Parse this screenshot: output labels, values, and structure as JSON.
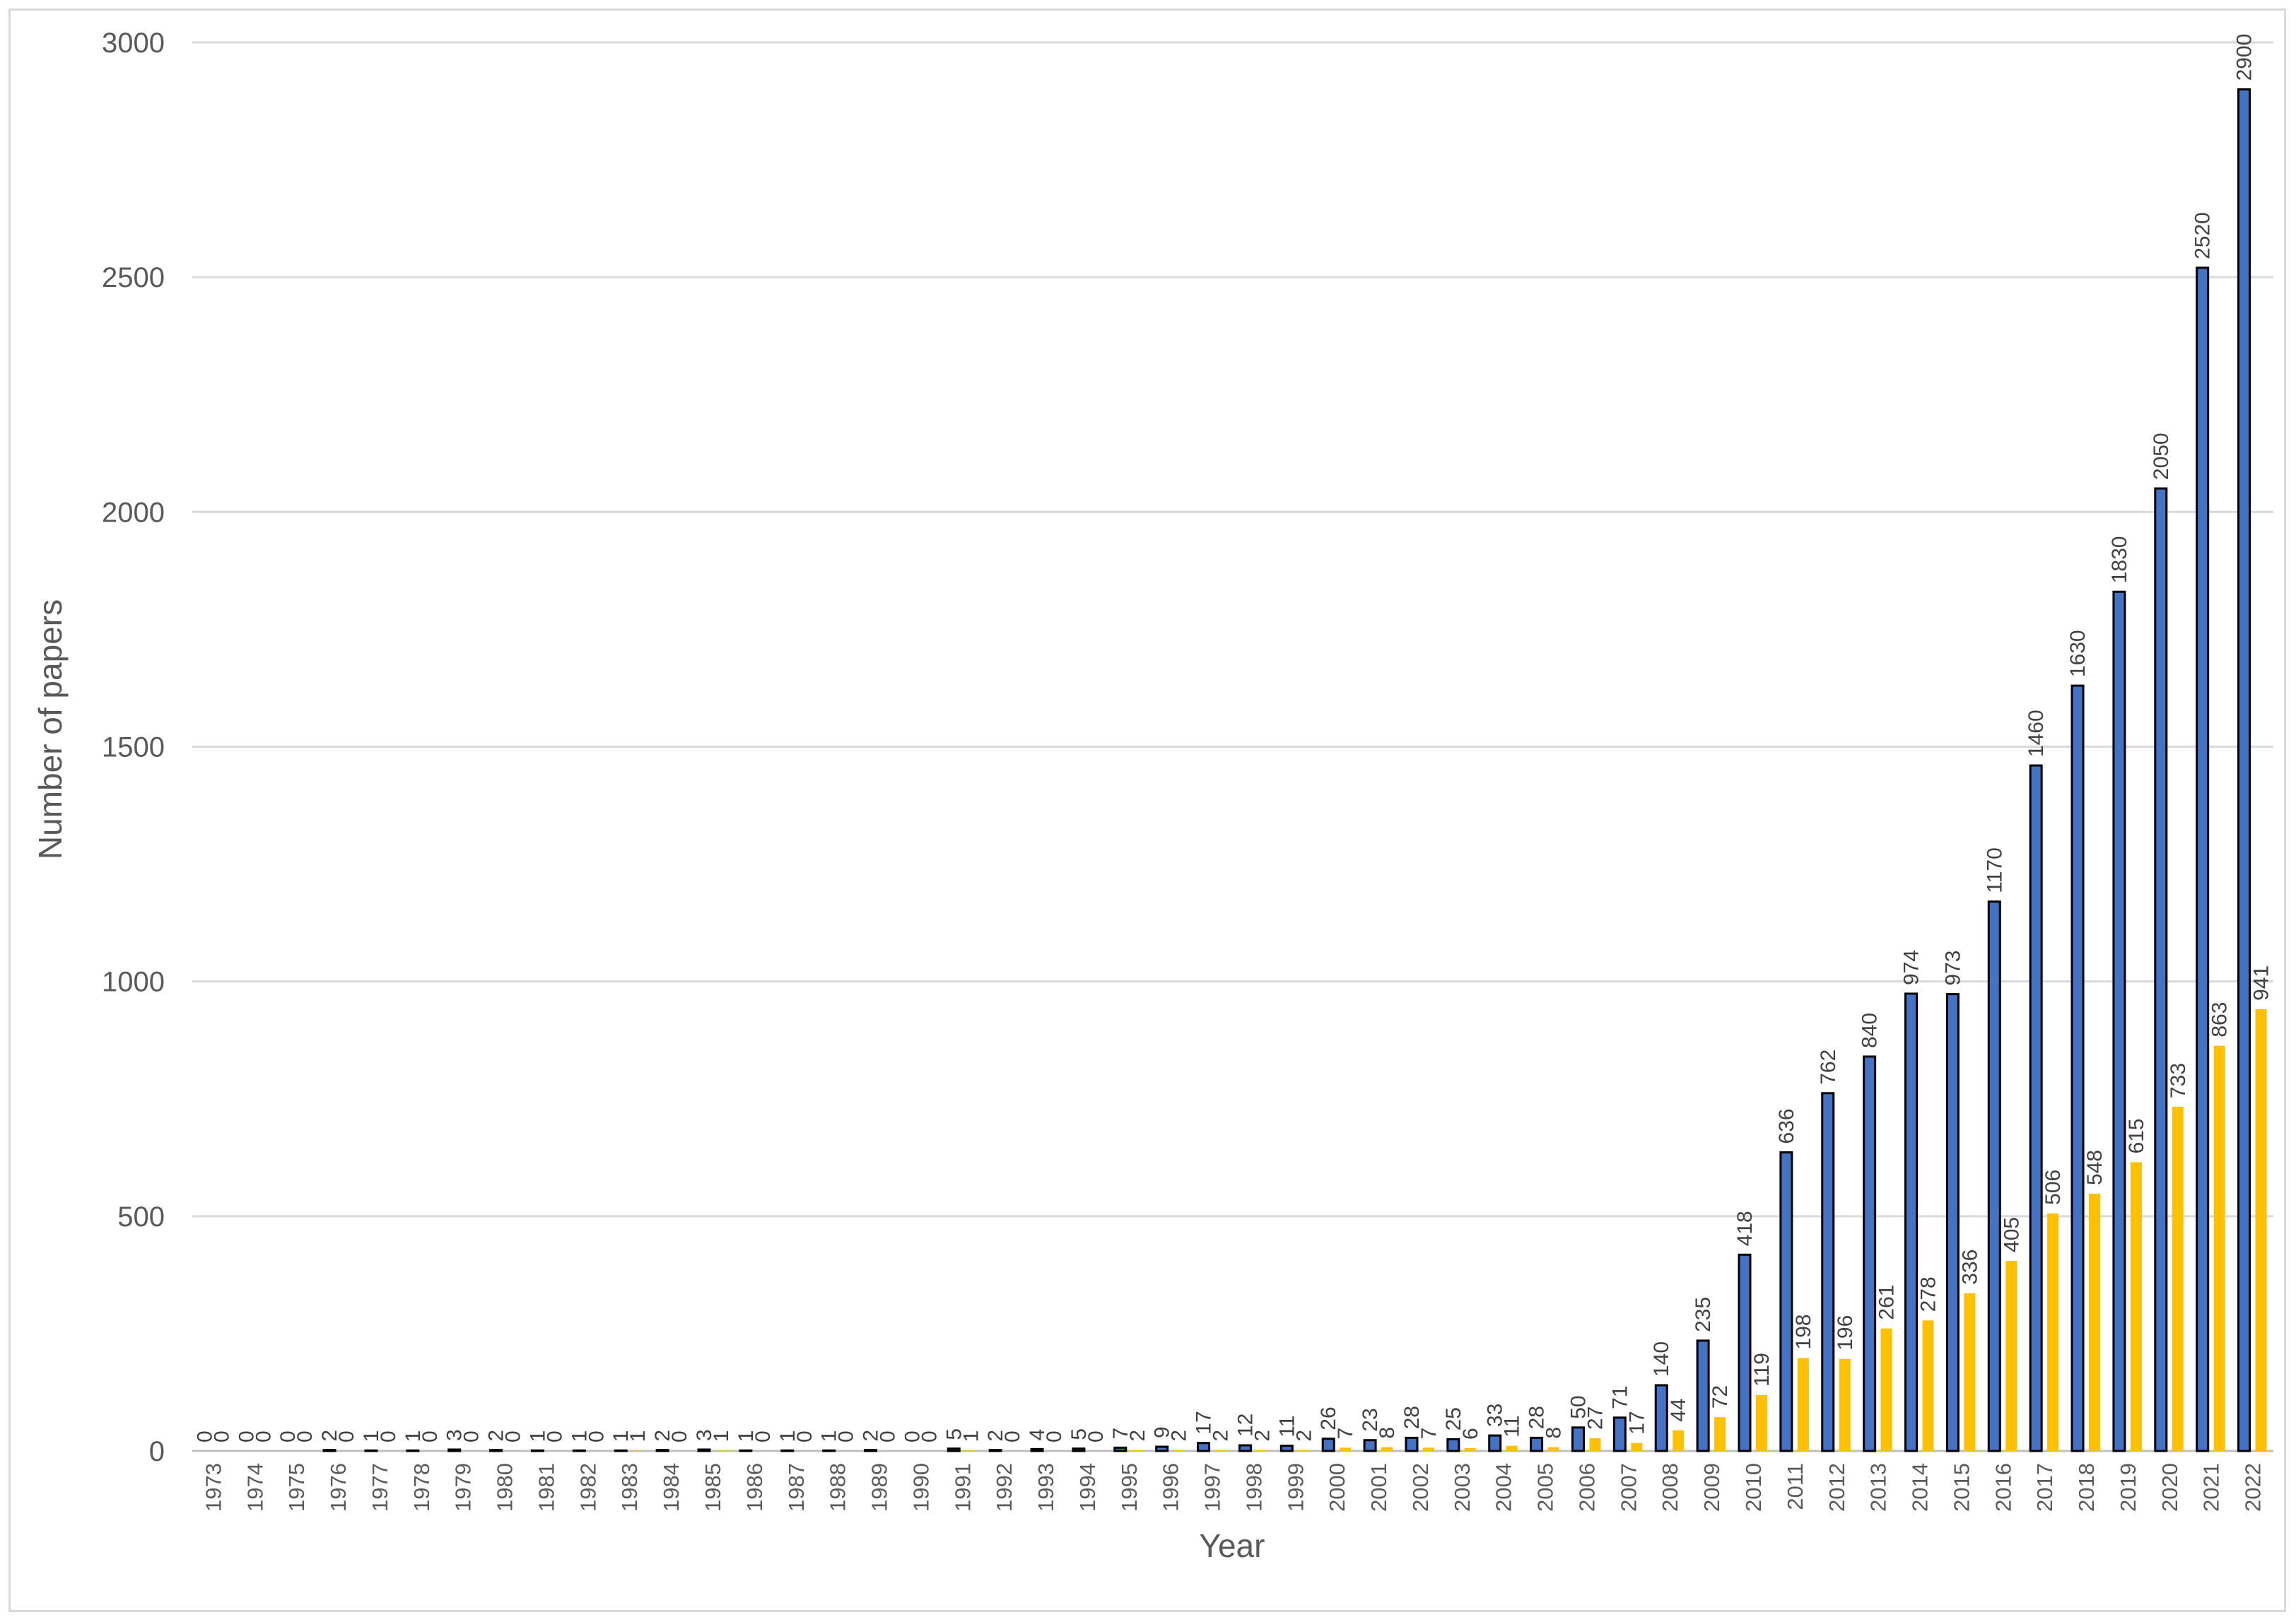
{
  "chart_data": {
    "type": "bar",
    "xlabel": "Year",
    "ylabel": "Number of papers",
    "ylim": [
      0,
      3000
    ],
    "yticks": [
      0,
      500,
      1000,
      1500,
      2000,
      2500,
      3000
    ],
    "grid": true,
    "legend": "none",
    "categories": [
      "1973",
      "1974",
      "1975",
      "1976",
      "1977",
      "1978",
      "1979",
      "1980",
      "1981",
      "1982",
      "1983",
      "1984",
      "1985",
      "1986",
      "1987",
      "1988",
      "1989",
      "1990",
      "1991",
      "1992",
      "1993",
      "1994",
      "1995",
      "1996",
      "1997",
      "1998",
      "1999",
      "2000",
      "2001",
      "2002",
      "2003",
      "2004",
      "2005",
      "2006",
      "2007",
      "2008",
      "2009",
      "2010",
      "2011",
      "2012",
      "2013",
      "2014",
      "2015",
      "2016",
      "2017",
      "2018",
      "2019",
      "2020",
      "2021",
      "2022"
    ],
    "series": [
      {
        "color": "#4472c4",
        "outline": "#000000",
        "values": [
          0,
          0,
          0,
          2,
          1,
          1,
          3,
          2,
          1,
          1,
          1,
          2,
          3,
          1,
          1,
          1,
          2,
          0,
          5,
          2,
          4,
          5,
          7,
          9,
          17,
          12,
          11,
          26,
          23,
          28,
          25,
          33,
          28,
          50,
          71,
          140,
          235,
          418,
          636,
          762,
          840,
          974,
          973,
          1170,
          1460,
          1630,
          1830,
          2050,
          2520,
          2900
        ]
      },
      {
        "color": "#ffc000",
        "values": [
          0,
          0,
          0,
          0,
          0,
          0,
          0,
          0,
          0,
          0,
          1,
          0,
          1,
          0,
          0,
          0,
          0,
          0,
          1,
          0,
          0,
          0,
          2,
          2,
          2,
          2,
          2,
          7,
          8,
          7,
          6,
          11,
          8,
          27,
          17,
          44,
          72,
          119,
          198,
          196,
          261,
          278,
          336,
          405,
          506,
          548,
          615,
          733,
          863,
          941
        ]
      }
    ]
  }
}
